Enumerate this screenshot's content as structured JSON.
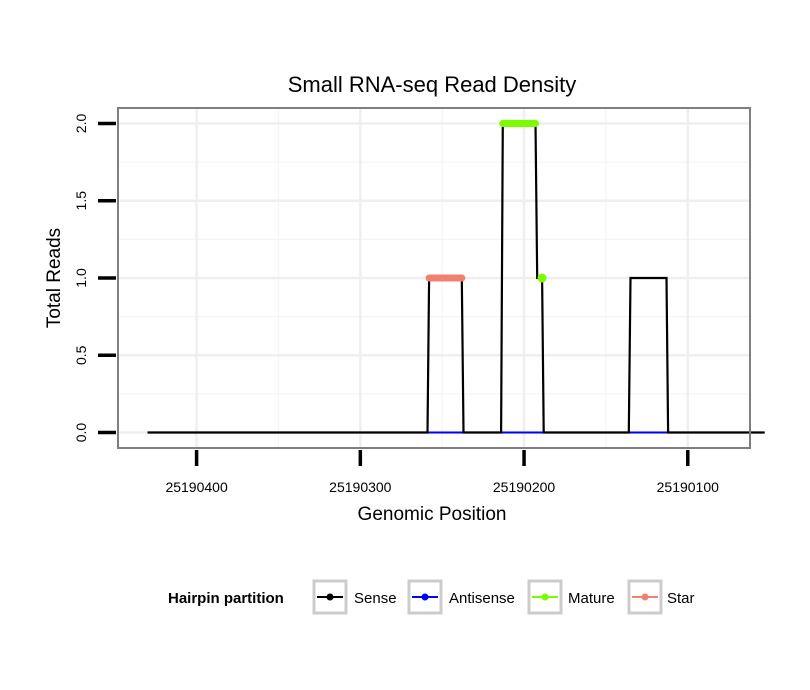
{
  "chart_data": {
    "type": "line",
    "title": "Small RNA-seq Read Density",
    "xlabel": "Genomic Position",
    "ylabel": "Total Reads",
    "x_reversed": true,
    "xlim": [
      25190448,
      25190062
    ],
    "ylim": [
      -0.1,
      2.1
    ],
    "xticks": [
      25190400,
      25190300,
      25190200,
      25190100
    ],
    "xtick_labels": [
      "25190400",
      "25190300",
      "25190200",
      "25190100"
    ],
    "yticks": [
      0.0,
      0.5,
      1.0,
      1.5,
      2.0
    ],
    "ytick_labels": [
      "0.0",
      "0.5",
      "1.0",
      "1.5",
      "2.0"
    ],
    "grid": true,
    "series": [
      {
        "name": "Sense",
        "color": "#000000",
        "points": [
          [
            25190430,
            0
          ],
          [
            25190259,
            0
          ],
          [
            25190258,
            1
          ],
          [
            25190238,
            1
          ],
          [
            25190237,
            0
          ],
          [
            25190214,
            0
          ],
          [
            25190213,
            2
          ],
          [
            25190193,
            2
          ],
          [
            25190192,
            1
          ],
          [
            25190189,
            1
          ],
          [
            25190188,
            0
          ],
          [
            25190136,
            0
          ],
          [
            25190135,
            1
          ],
          [
            25190113,
            1
          ],
          [
            25190112,
            0
          ],
          [
            25190053,
            0
          ]
        ]
      },
      {
        "name": "Antisense",
        "color": "#0000ff",
        "points": [
          [
            25190259,
            0
          ],
          [
            25190237,
            0
          ],
          [
            25190214,
            0
          ],
          [
            25190188,
            0
          ],
          [
            25190136,
            0
          ],
          [
            25190112,
            0
          ]
        ]
      },
      {
        "name": "Mature",
        "color": "#7cfc00",
        "segments": [
          {
            "x_from": 25190213,
            "x_to": 25190193,
            "y": 2
          }
        ],
        "points": [
          [
            25190189,
            1
          ]
        ]
      },
      {
        "name": "Star",
        "color": "#f08070",
        "segments": [
          {
            "x_from": 25190258,
            "x_to": 25190238,
            "y": 1
          }
        ],
        "points": []
      }
    ],
    "legend": {
      "title": "Hairpin partition",
      "position": "bottom",
      "entries": [
        {
          "label": "Sense",
          "color": "#000000"
        },
        {
          "label": "Antisense",
          "color": "#0000ff"
        },
        {
          "label": "Mature",
          "color": "#7cfc00"
        },
        {
          "label": "Star",
          "color": "#f08070"
        }
      ]
    }
  }
}
